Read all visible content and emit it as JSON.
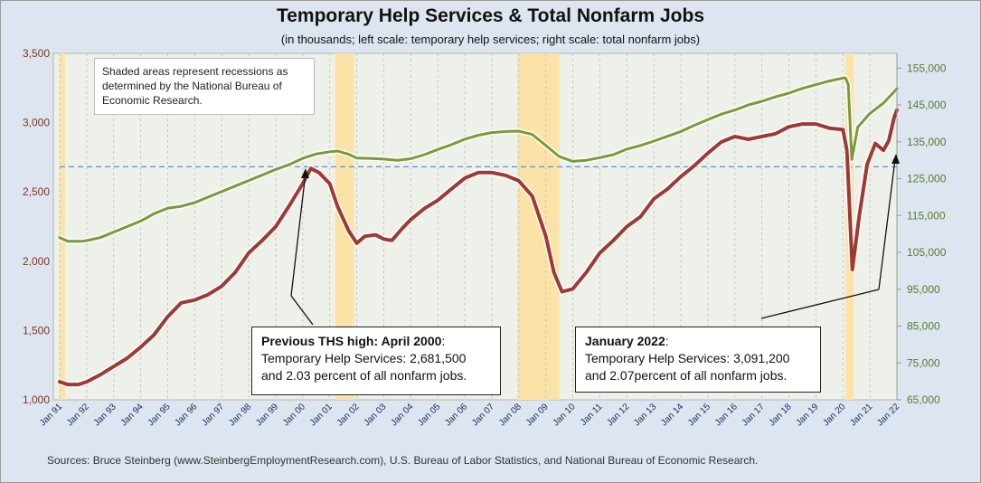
{
  "title": "Temporary Help Services & Total Nonfarm Jobs",
  "subtitle": "(in thousands; left scale: temporary  help services; right scale: total nonfarm  jobs)",
  "recession_note": "Shaded areas represent recessions as determined by the National Bureau of Economic Research.",
  "annotation_2000": {
    "heading": "Previous THS high: April 2000",
    "colon": ":",
    "line1": "Temporary Help Services: 2,681,500",
    "line2": "and 2.03 percent of all nonfarm jobs."
  },
  "annotation_2022": {
    "heading": "January 2022",
    "colon": ":",
    "line1": "Temporary Help Services:  3,091,200",
    "line2": "and 2.07percent of all nonfarm jobs."
  },
  "sources": "Sources: Bruce Steinberg (www.SteinbergEmploymentResearch.com), U.S. Bureau of Labor Statistics, and National Bureau of Economic Research.",
  "colors": {
    "ths_line": "#9e3a35",
    "nonfarm_line": "#7a9a3a",
    "recession": "#fbe3a8",
    "reference_line": "#5b8fd6",
    "left_axis_text": "#7a3520",
    "right_axis_text": "#5a7a2a",
    "background": "#dde5f0"
  },
  "chart_data": {
    "type": "line",
    "x_tick_labels": [
      "Jan 91",
      "Jan 92",
      "Jan 93",
      "Jan 94",
      "Jan 95",
      "Jan 96",
      "Jan 97",
      "Jan 98",
      "Jan 99",
      "Jan 00",
      "Jan 01",
      "Jan 02",
      "Jan 03",
      "Jan 04",
      "Jan 05",
      "Jan 06",
      "Jan 07",
      "Jan 08",
      "Jan 09",
      "Jan 10",
      "Jan 11",
      "Jan 12",
      "Jan 13",
      "Jan 14",
      "Jan 15",
      "Jan 16",
      "Jan 17",
      "Jan 18",
      "Jan 19",
      "Jan 20",
      "Jan 21",
      "Jan 22"
    ],
    "x_range": [
      1991.0,
      2022.0
    ],
    "y_left": {
      "range": [
        1000,
        3500
      ],
      "ticks": [
        1000,
        1500,
        2000,
        2500,
        3000,
        3500
      ],
      "tick_labels": [
        "1,000",
        "1,500",
        "2,000",
        "2,500",
        "3,000",
        "3,500"
      ]
    },
    "y_right": {
      "range": [
        65000,
        159000
      ],
      "ticks": [
        65000,
        75000,
        85000,
        95000,
        105000,
        115000,
        125000,
        135000,
        145000,
        155000
      ],
      "tick_labels": [
        "65,000",
        "75,000",
        "85,000",
        "95,000",
        "105,000",
        "115,000",
        "125,000",
        "135,000",
        "145,000",
        "155,000"
      ]
    },
    "grid": "vertical dashed",
    "recessions": [
      [
        1991.0,
        1991.2
      ],
      [
        2001.2,
        2001.9
      ],
      [
        2007.95,
        2009.5
      ],
      [
        2020.1,
        2020.4
      ]
    ],
    "reference_level_left": 2681.5,
    "series": [
      {
        "axis": "left",
        "points": [
          [
            1991.0,
            1130
          ],
          [
            1991.3,
            1110
          ],
          [
            1991.7,
            1110
          ],
          [
            1992.0,
            1130
          ],
          [
            1992.5,
            1180
          ],
          [
            1993.0,
            1240
          ],
          [
            1993.5,
            1300
          ],
          [
            1994.0,
            1380
          ],
          [
            1994.5,
            1470
          ],
          [
            1995.0,
            1600
          ],
          [
            1995.5,
            1700
          ],
          [
            1996.0,
            1720
          ],
          [
            1996.5,
            1760
          ],
          [
            1997.0,
            1820
          ],
          [
            1997.5,
            1920
          ],
          [
            1998.0,
            2060
          ],
          [
            1998.5,
            2150
          ],
          [
            1999.0,
            2250
          ],
          [
            1999.5,
            2400
          ],
          [
            2000.0,
            2560
          ],
          [
            2000.3,
            2670
          ],
          [
            2000.6,
            2640
          ],
          [
            2001.0,
            2560
          ],
          [
            2001.3,
            2390
          ],
          [
            2001.7,
            2220
          ],
          [
            2002.0,
            2130
          ],
          [
            2002.3,
            2180
          ],
          [
            2002.7,
            2190
          ],
          [
            2003.0,
            2160
          ],
          [
            2003.3,
            2150
          ],
          [
            2003.7,
            2240
          ],
          [
            2004.0,
            2300
          ],
          [
            2004.5,
            2380
          ],
          [
            2005.0,
            2440
          ],
          [
            2005.5,
            2520
          ],
          [
            2006.0,
            2600
          ],
          [
            2006.5,
            2640
          ],
          [
            2007.0,
            2640
          ],
          [
            2007.5,
            2620
          ],
          [
            2008.0,
            2580
          ],
          [
            2008.5,
            2470
          ],
          [
            2009.0,
            2180
          ],
          [
            2009.3,
            1920
          ],
          [
            2009.6,
            1780
          ],
          [
            2010.0,
            1800
          ],
          [
            2010.5,
            1920
          ],
          [
            2011.0,
            2060
          ],
          [
            2011.5,
            2150
          ],
          [
            2012.0,
            2250
          ],
          [
            2012.5,
            2320
          ],
          [
            2013.0,
            2450
          ],
          [
            2013.5,
            2520
          ],
          [
            2014.0,
            2610
          ],
          [
            2014.5,
            2690
          ],
          [
            2015.0,
            2780
          ],
          [
            2015.5,
            2860
          ],
          [
            2016.0,
            2900
          ],
          [
            2016.5,
            2880
          ],
          [
            2017.0,
            2900
          ],
          [
            2017.5,
            2920
          ],
          [
            2018.0,
            2970
          ],
          [
            2018.5,
            2990
          ],
          [
            2019.0,
            2990
          ],
          [
            2019.5,
            2960
          ],
          [
            2020.0,
            2950
          ],
          [
            2020.15,
            2800
          ],
          [
            2020.35,
            1940
          ],
          [
            2020.6,
            2320
          ],
          [
            2020.9,
            2700
          ],
          [
            2021.2,
            2850
          ],
          [
            2021.5,
            2800
          ],
          [
            2021.7,
            2870
          ],
          [
            2021.9,
            3040
          ],
          [
            2022.0,
            3091
          ]
        ]
      },
      {
        "axis": "right",
        "points": [
          [
            1991.0,
            109000
          ],
          [
            1991.3,
            108000
          ],
          [
            1991.8,
            108000
          ],
          [
            1992.0,
            108200
          ],
          [
            1992.5,
            109000
          ],
          [
            1993.0,
            110500
          ],
          [
            1993.5,
            112000
          ],
          [
            1994.0,
            113500
          ],
          [
            1994.5,
            115500
          ],
          [
            1995.0,
            117000
          ],
          [
            1995.5,
            117500
          ],
          [
            1996.0,
            118500
          ],
          [
            1996.5,
            120000
          ],
          [
            1997.0,
            121500
          ],
          [
            1997.5,
            123000
          ],
          [
            1998.0,
            124500
          ],
          [
            1998.5,
            126000
          ],
          [
            1999.0,
            127500
          ],
          [
            1999.5,
            128800
          ],
          [
            2000.0,
            130500
          ],
          [
            2000.5,
            131700
          ],
          [
            2001.0,
            132300
          ],
          [
            2001.3,
            132500
          ],
          [
            2001.7,
            131600
          ],
          [
            2002.0,
            130600
          ],
          [
            2002.5,
            130500
          ],
          [
            2003.0,
            130300
          ],
          [
            2003.5,
            130000
          ],
          [
            2004.0,
            130400
          ],
          [
            2004.5,
            131500
          ],
          [
            2005.0,
            132900
          ],
          [
            2005.5,
            134200
          ],
          [
            2006.0,
            135700
          ],
          [
            2006.5,
            136800
          ],
          [
            2007.0,
            137500
          ],
          [
            2007.5,
            137800
          ],
          [
            2008.0,
            137900
          ],
          [
            2008.5,
            137000
          ],
          [
            2009.0,
            134000
          ],
          [
            2009.5,
            131000
          ],
          [
            2010.0,
            129700
          ],
          [
            2010.5,
            130000
          ],
          [
            2011.0,
            130700
          ],
          [
            2011.5,
            131500
          ],
          [
            2012.0,
            133000
          ],
          [
            2012.5,
            134000
          ],
          [
            2013.0,
            135200
          ],
          [
            2013.5,
            136500
          ],
          [
            2014.0,
            137800
          ],
          [
            2014.5,
            139500
          ],
          [
            2015.0,
            141000
          ],
          [
            2015.5,
            142500
          ],
          [
            2016.0,
            143600
          ],
          [
            2016.5,
            145000
          ],
          [
            2017.0,
            146000
          ],
          [
            2017.5,
            147200
          ],
          [
            2018.0,
            148200
          ],
          [
            2018.5,
            149500
          ],
          [
            2019.0,
            150500
          ],
          [
            2019.5,
            151500
          ],
          [
            2020.0,
            152300
          ],
          [
            2020.1,
            152300
          ],
          [
            2020.2,
            150500
          ],
          [
            2020.33,
            130200
          ],
          [
            2020.55,
            139000
          ],
          [
            2021.0,
            142700
          ],
          [
            2021.5,
            145500
          ],
          [
            2022.0,
            149400
          ]
        ]
      }
    ]
  }
}
